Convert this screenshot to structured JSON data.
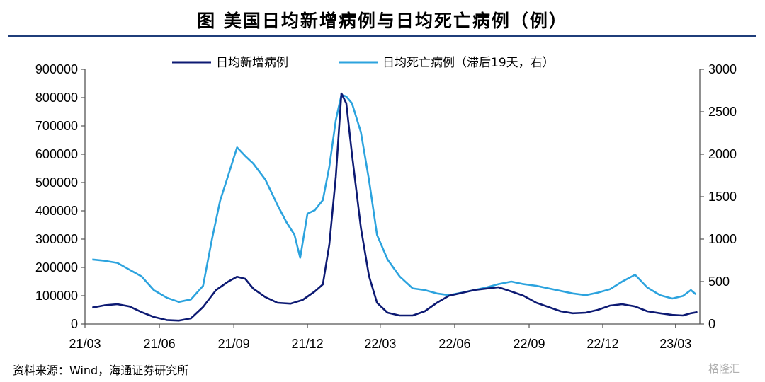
{
  "title": "图  美国日均新增病例与日均死亡病例（例）",
  "source": "资料来源：Wind，海通证券研究所",
  "watermark": "格隆汇",
  "chart_data": {
    "type": "line",
    "x_ticks": [
      "21/03",
      "21/06",
      "21/09",
      "21/12",
      "22/03",
      "22/06",
      "22/09",
      "22/12",
      "23/03"
    ],
    "x_range": [
      "2021-03-01",
      "2023-03-31"
    ],
    "y_left": {
      "ticks": [
        "0",
        "100000",
        "200000",
        "300000",
        "400000",
        "500000",
        "600000",
        "700000",
        "800000",
        "900000"
      ],
      "range": [
        0,
        900000
      ]
    },
    "y_right": {
      "ticks": [
        "0",
        "500",
        "1000",
        "1500",
        "2000",
        "2500",
        "3000"
      ],
      "range": [
        0,
        3000
      ]
    },
    "legend_position": "top",
    "grid": false,
    "series": [
      {
        "name": "日均新增病例",
        "axis": "left",
        "color": "#0d1a73",
        "points": [
          [
            "2021-03-10",
            58000
          ],
          [
            "2021-03-25",
            66000
          ],
          [
            "2021-04-10",
            70000
          ],
          [
            "2021-04-25",
            62000
          ],
          [
            "2021-05-10",
            42000
          ],
          [
            "2021-05-25",
            25000
          ],
          [
            "2021-06-10",
            14000
          ],
          [
            "2021-06-25",
            12000
          ],
          [
            "2021-07-10",
            20000
          ],
          [
            "2021-07-25",
            60000
          ],
          [
            "2021-08-10",
            120000
          ],
          [
            "2021-08-25",
            150000
          ],
          [
            "2021-09-05",
            167000
          ],
          [
            "2021-09-15",
            160000
          ],
          [
            "2021-09-25",
            125000
          ],
          [
            "2021-10-10",
            95000
          ],
          [
            "2021-10-25",
            75000
          ],
          [
            "2021-11-10",
            72000
          ],
          [
            "2021-11-25",
            85000
          ],
          [
            "2021-12-10",
            115000
          ],
          [
            "2021-12-20",
            140000
          ],
          [
            "2021-12-28",
            280000
          ],
          [
            "2022-01-05",
            520000
          ],
          [
            "2022-01-12",
            815000
          ],
          [
            "2022-01-18",
            780000
          ],
          [
            "2022-01-25",
            600000
          ],
          [
            "2022-02-05",
            340000
          ],
          [
            "2022-02-15",
            170000
          ],
          [
            "2022-02-25",
            75000
          ],
          [
            "2022-03-10",
            40000
          ],
          [
            "2022-03-25",
            30000
          ],
          [
            "2022-04-10",
            30000
          ],
          [
            "2022-04-25",
            45000
          ],
          [
            "2022-05-10",
            75000
          ],
          [
            "2022-05-25",
            100000
          ],
          [
            "2022-06-10",
            110000
          ],
          [
            "2022-06-25",
            120000
          ],
          [
            "2022-07-10",
            125000
          ],
          [
            "2022-07-25",
            130000
          ],
          [
            "2022-08-10",
            115000
          ],
          [
            "2022-08-25",
            100000
          ],
          [
            "2022-09-10",
            75000
          ],
          [
            "2022-09-25",
            60000
          ],
          [
            "2022-10-10",
            45000
          ],
          [
            "2022-10-25",
            38000
          ],
          [
            "2022-11-10",
            40000
          ],
          [
            "2022-11-25",
            50000
          ],
          [
            "2022-12-10",
            65000
          ],
          [
            "2022-12-25",
            70000
          ],
          [
            "2023-01-10",
            62000
          ],
          [
            "2023-01-25",
            45000
          ],
          [
            "2023-02-10",
            38000
          ],
          [
            "2023-02-25",
            32000
          ],
          [
            "2023-03-10",
            30000
          ],
          [
            "2023-03-20",
            38000
          ],
          [
            "2023-03-28",
            42000
          ]
        ]
      },
      {
        "name": "日均死亡病例（滞后19天，右）",
        "axis": "right",
        "color": "#2ca3de",
        "points": [
          [
            "2021-03-10",
            760
          ],
          [
            "2021-03-25",
            745
          ],
          [
            "2021-04-10",
            720
          ],
          [
            "2021-04-25",
            640
          ],
          [
            "2021-05-10",
            560
          ],
          [
            "2021-05-25",
            400
          ],
          [
            "2021-06-10",
            310
          ],
          [
            "2021-06-25",
            260
          ],
          [
            "2021-07-10",
            290
          ],
          [
            "2021-07-25",
            450
          ],
          [
            "2021-08-05",
            1000
          ],
          [
            "2021-08-15",
            1450
          ],
          [
            "2021-08-25",
            1750
          ],
          [
            "2021-09-05",
            2080
          ],
          [
            "2021-09-15",
            1980
          ],
          [
            "2021-09-25",
            1890
          ],
          [
            "2021-10-10",
            1700
          ],
          [
            "2021-10-25",
            1400
          ],
          [
            "2021-11-05",
            1200
          ],
          [
            "2021-11-15",
            1050
          ],
          [
            "2021-11-22",
            780
          ],
          [
            "2021-12-01",
            1300
          ],
          [
            "2021-12-10",
            1340
          ],
          [
            "2021-12-20",
            1460
          ],
          [
            "2021-12-28",
            1850
          ],
          [
            "2022-01-05",
            2400
          ],
          [
            "2022-01-12",
            2700
          ],
          [
            "2022-01-18",
            2680
          ],
          [
            "2022-01-25",
            2600
          ],
          [
            "2022-02-05",
            2260
          ],
          [
            "2022-02-15",
            1700
          ],
          [
            "2022-02-25",
            1050
          ],
          [
            "2022-03-10",
            760
          ],
          [
            "2022-03-25",
            560
          ],
          [
            "2022-04-10",
            420
          ],
          [
            "2022-04-25",
            400
          ],
          [
            "2022-05-10",
            360
          ],
          [
            "2022-05-25",
            340
          ],
          [
            "2022-06-10",
            370
          ],
          [
            "2022-06-25",
            400
          ],
          [
            "2022-07-10",
            430
          ],
          [
            "2022-07-25",
            470
          ],
          [
            "2022-08-10",
            500
          ],
          [
            "2022-08-25",
            470
          ],
          [
            "2022-09-10",
            450
          ],
          [
            "2022-09-25",
            420
          ],
          [
            "2022-10-10",
            390
          ],
          [
            "2022-10-25",
            360
          ],
          [
            "2022-11-10",
            340
          ],
          [
            "2022-11-25",
            370
          ],
          [
            "2022-12-10",
            410
          ],
          [
            "2022-12-25",
            500
          ],
          [
            "2023-01-10",
            580
          ],
          [
            "2023-01-25",
            430
          ],
          [
            "2023-02-10",
            340
          ],
          [
            "2023-02-25",
            300
          ],
          [
            "2023-03-10",
            330
          ],
          [
            "2023-03-20",
            400
          ],
          [
            "2023-03-26",
            350
          ]
        ]
      }
    ]
  }
}
